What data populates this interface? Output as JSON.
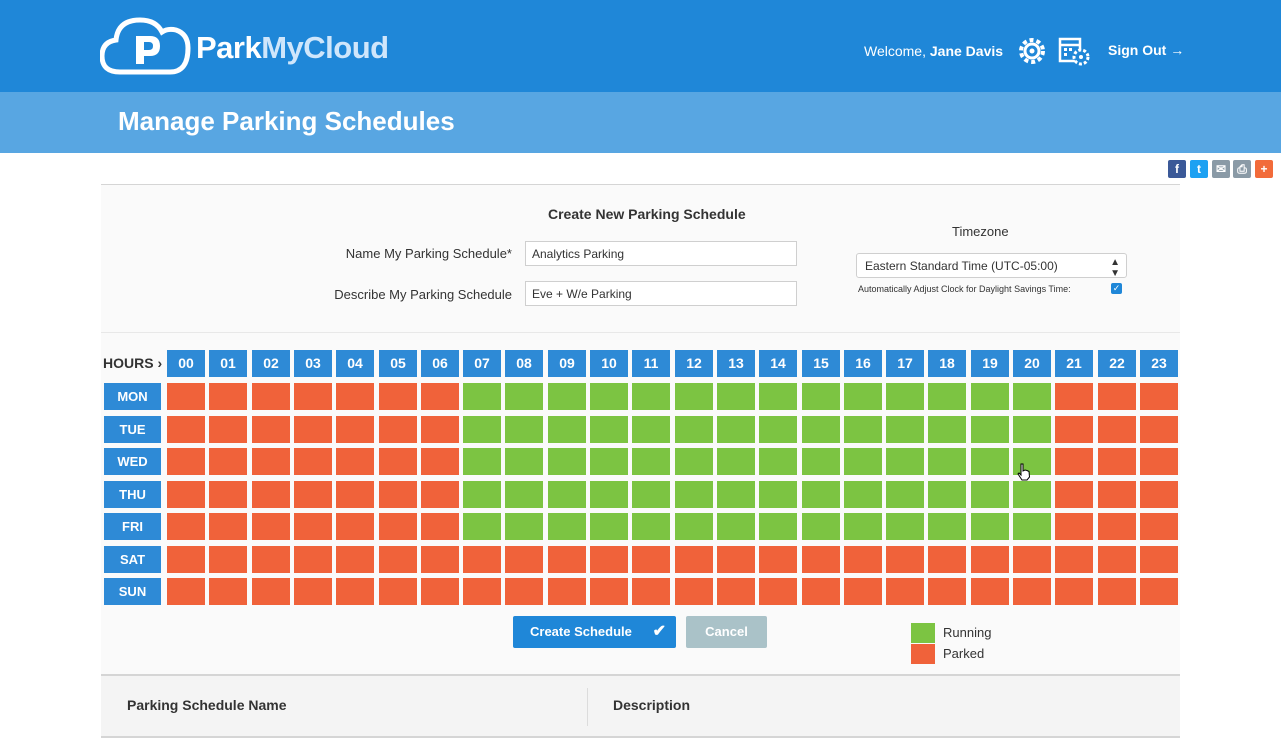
{
  "brand": {
    "part1": "Park",
    "part2": "MyCloud"
  },
  "header": {
    "welcome": "Welcome,",
    "user": "Jane Davis",
    "sign_out": "Sign Out →"
  },
  "page_title": "Manage Parking Schedules",
  "share_icons": [
    "facebook-icon",
    "twitter-icon",
    "email-icon",
    "print-icon",
    "add-icon"
  ],
  "colors": {
    "running": "#7cc442",
    "parked": "#f0623a",
    "accent": "#1f87d8"
  },
  "form": {
    "title": "Create New Parking Schedule",
    "name_label": "Name My Parking Schedule*",
    "name_value": "Analytics Parking",
    "desc_label": "Describe My Parking Schedule",
    "desc_value": "Eve + W/e Parking",
    "timezone_label": "Timezone",
    "timezone_value": "Eastern Standard Time (UTC-05:00)",
    "dst_label": "Automatically Adjust Clock for Daylight Savings Time:",
    "dst_checked": true
  },
  "schedule": {
    "hours_label": "HOURS ›",
    "hours": [
      "00",
      "01",
      "02",
      "03",
      "04",
      "05",
      "06",
      "07",
      "08",
      "09",
      "10",
      "11",
      "12",
      "13",
      "14",
      "15",
      "16",
      "17",
      "18",
      "19",
      "20",
      "21",
      "22",
      "23"
    ],
    "days": [
      "MON",
      "TUE",
      "WED",
      "THU",
      "FRI",
      "SAT",
      "SUN"
    ],
    "running_hours_weekdays": [
      7,
      20
    ],
    "grid": [
      "000000011111111111111000",
      "000000011111111111111000",
      "000000011111111111111000",
      "000000011111111111111000",
      "000000011111111111111000",
      "000000000000000000000000",
      "000000000000000000000000"
    ]
  },
  "buttons": {
    "create": "Create Schedule",
    "cancel": "Cancel"
  },
  "legend": {
    "running": "Running",
    "parked": "Parked"
  },
  "table": {
    "col_name": "Parking Schedule Name",
    "col_desc": "Description"
  }
}
